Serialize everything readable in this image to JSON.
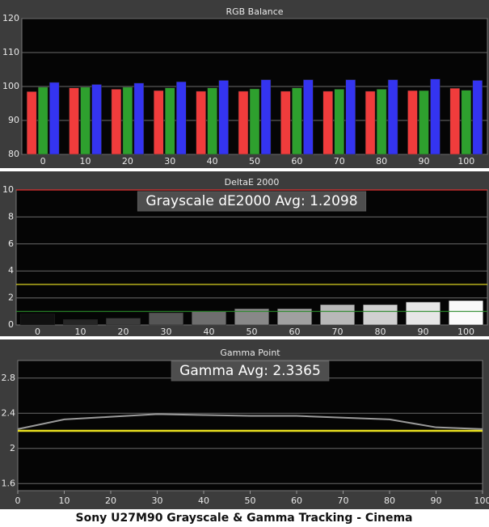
{
  "caption": "Sony U27M90 Grayscale & Gamma Tracking - Cinema",
  "chart_data": [
    {
      "type": "bar",
      "title": "RGB Balance",
      "categories": [
        0,
        10,
        20,
        30,
        40,
        50,
        60,
        70,
        80,
        90,
        100
      ],
      "series": [
        {
          "color": "#f03c3c",
          "values": [
            98.5,
            99.6,
            99.2,
            98.8,
            98.6,
            98.6,
            98.6,
            98.6,
            98.6,
            98.8,
            99.5
          ]
        },
        {
          "color": "#2ea02e",
          "values": [
            99.8,
            99.8,
            99.8,
            99.6,
            99.6,
            99.3,
            99.6,
            99.2,
            99.2,
            98.8,
            98.9
          ]
        },
        {
          "color": "#3434f0",
          "values": [
            101.2,
            100.6,
            101.0,
            101.4,
            101.8,
            102.0,
            102.0,
            102.0,
            102.0,
            102.2,
            101.8
          ]
        }
      ],
      "ylim": [
        80,
        120
      ],
      "yticks": [
        80,
        90,
        100,
        110,
        120
      ],
      "grid": true
    },
    {
      "type": "bar",
      "title": "DeltaE 2000",
      "annotation": "Grayscale dE2000 Avg: 1.2098",
      "categories": [
        0,
        10,
        20,
        30,
        40,
        50,
        60,
        70,
        80,
        90,
        100
      ],
      "values": [
        0.8,
        0.4,
        0.5,
        0.9,
        1.0,
        1.2,
        1.2,
        1.5,
        1.5,
        1.7,
        1.8
      ],
      "colors": [
        "#101010",
        "#262626",
        "#3c3c3c",
        "#555555",
        "#6e6e6e",
        "#888888",
        "#a0a0a0",
        "#b8b8b8",
        "#d0d0d0",
        "#e6e6e6",
        "#fafafa"
      ],
      "reference_lines": [
        {
          "value": 10,
          "color": "#e03030"
        },
        {
          "value": 3,
          "color": "#d8d020"
        },
        {
          "value": 1,
          "color": "#2a8a2a"
        }
      ],
      "ylim": [
        0,
        10
      ],
      "yticks": [
        0,
        2,
        4,
        6,
        8,
        10
      ],
      "grid": true
    },
    {
      "type": "line",
      "title": "Gamma Point",
      "annotation": "Gamma Avg: 2.3365",
      "x": [
        0,
        10,
        20,
        30,
        40,
        50,
        60,
        70,
        80,
        90,
        100
      ],
      "series": [
        {
          "color": "#9a9a9a",
          "values": [
            2.22,
            2.33,
            2.36,
            2.39,
            2.38,
            2.37,
            2.37,
            2.35,
            2.33,
            2.24,
            2.22
          ]
        }
      ],
      "reference_lines": [
        {
          "value": 2.2,
          "color": "#e8e020"
        }
      ],
      "xlim": [
        0,
        100
      ],
      "xticks": [
        0,
        10,
        20,
        30,
        40,
        50,
        60,
        70,
        80,
        90,
        100
      ],
      "ylim": [
        1.52,
        3.0
      ],
      "yticks": [
        1.6,
        2,
        2.4,
        2.8
      ],
      "grid": true
    }
  ]
}
